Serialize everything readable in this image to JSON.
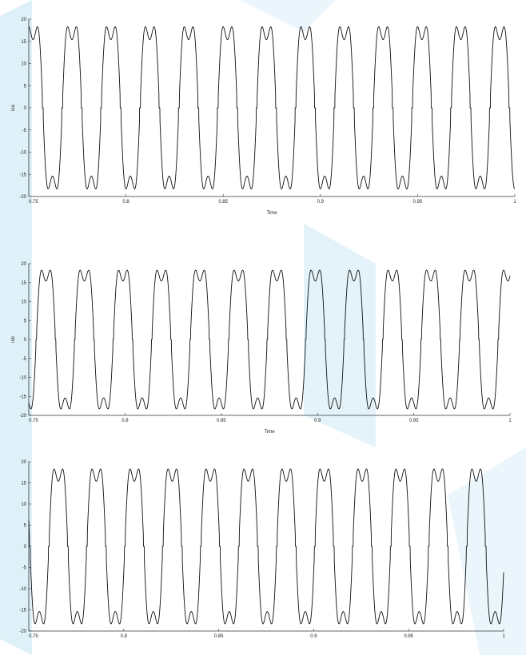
{
  "colors": {
    "trace": "#111111",
    "axis": "#333333",
    "watermark": "#d9eef7"
  },
  "chart_data": [
    {
      "type": "line",
      "xlabel": "Time",
      "ylabel": "isa",
      "xlim": [
        0.75,
        1
      ],
      "ylim": [
        -20,
        20
      ],
      "xticks": [
        0.75,
        0.8,
        0.85,
        0.9,
        0.95,
        1
      ],
      "xtick_labels": [
        "0.75",
        "0.8",
        "0.85",
        "0.9",
        "0.95",
        "1"
      ],
      "yticks": [
        20,
        15,
        10,
        5,
        0,
        -5,
        -10,
        -15,
        -20
      ],
      "ytick_labels": [
        "20",
        "15",
        "10",
        "5",
        "0",
        "-5",
        "-10",
        "-15",
        "-20"
      ],
      "grid": false,
      "waveform": {
        "amplitude": 19.5,
        "frequency_hz": 50,
        "phase_deg": 230,
        "third_harmonic": 0.25,
        "dead_band": 2.5
      }
    },
    {
      "type": "line",
      "xlabel": "Time",
      "ylabel": "isb",
      "xlim": [
        0.75,
        1
      ],
      "ylim": [
        -20,
        20
      ],
      "xticks": [
        0.75,
        0.8,
        0.85,
        0.9,
        0.95,
        1
      ],
      "xtick_labels": [
        "0.75",
        "0.8",
        "0.85",
        "0.9",
        "0.95",
        "1"
      ],
      "yticks": [
        20,
        15,
        10,
        5,
        0,
        -5,
        -10,
        -15,
        -20
      ],
      "ytick_labels": [
        "20",
        "15",
        "10",
        "5",
        "0",
        "-5",
        "-10",
        "-15",
        "-20"
      ],
      "grid": false,
      "waveform": {
        "amplitude": 19.5,
        "frequency_hz": 50,
        "phase_deg": 110,
        "third_harmonic": 0.25,
        "dead_band": 2.5
      }
    },
    {
      "type": "line",
      "xlabel": "",
      "ylabel": "",
      "xlim": [
        0.75,
        1
      ],
      "ylim": [
        -20,
        20
      ],
      "xticks": [
        0.75,
        0.8,
        0.85,
        0.9,
        0.95,
        1
      ],
      "xtick_labels": [
        "0.75",
        "0.8",
        "0.85",
        "0.9",
        "0.95",
        "1"
      ],
      "yticks": [
        20,
        15,
        10,
        5,
        0,
        -5,
        -10,
        -15,
        -20
      ],
      "ytick_labels": [
        "20",
        "15",
        "10",
        "5",
        "0",
        "-5",
        "-10",
        "-15",
        "-20"
      ],
      "grid": false,
      "waveform": {
        "amplitude": 19.5,
        "frequency_hz": 50,
        "phase_deg": 350,
        "third_harmonic": 0.25,
        "dead_band": 2.5
      }
    }
  ]
}
